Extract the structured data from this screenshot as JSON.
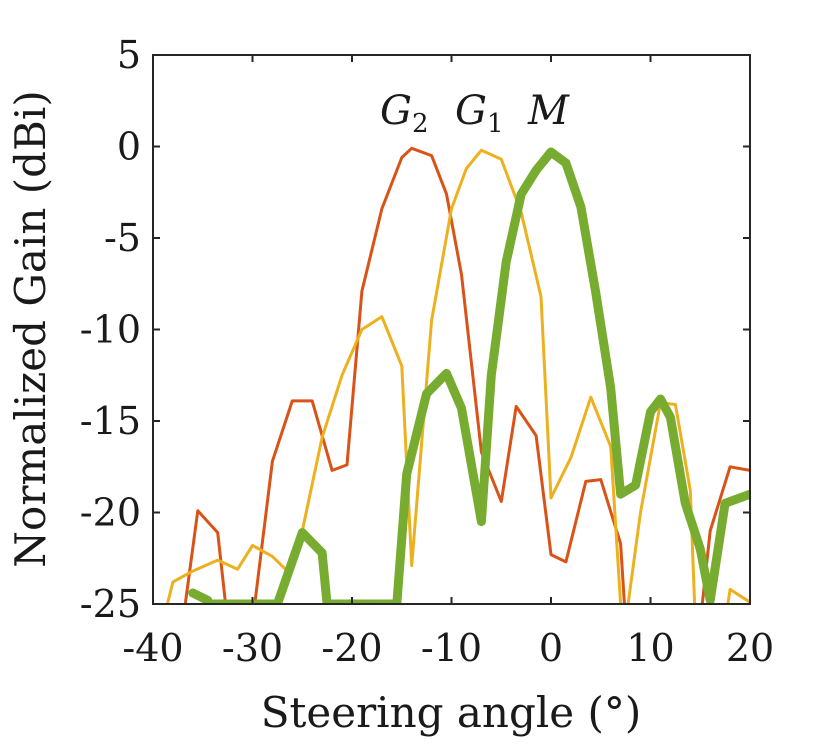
{
  "chart_data": {
    "type": "line",
    "xlabel": "Steering angle (°)",
    "ylabel": "Normalized Gain (dBi)",
    "xlim": [
      -40,
      20
    ],
    "ylim": [
      -25,
      5
    ],
    "xticks": [
      -40,
      -30,
      -20,
      -10,
      0,
      10,
      20
    ],
    "yticks": [
      5,
      0,
      -5,
      -10,
      -15,
      -20,
      -25
    ],
    "grid": false,
    "legend_labels": [
      {
        "base": "G",
        "sub": "2",
        "name": "G2"
      },
      {
        "base": "G",
        "sub": "1",
        "name": "G1"
      },
      {
        "base": "M",
        "sub": "",
        "name": "M"
      }
    ],
    "series": [
      {
        "name": "G2",
        "color": "#d95319",
        "width": 3,
        "points": [
          [
            -37,
            -26
          ],
          [
            -35.5,
            -19.9
          ],
          [
            -33.5,
            -21.1
          ],
          [
            -32.5,
            -26
          ],
          [
            -30,
            -26
          ],
          [
            -28,
            -17.2
          ],
          [
            -26,
            -13.9
          ],
          [
            -24,
            -13.9
          ],
          [
            -22,
            -17.7
          ],
          [
            -20.5,
            -17.4
          ],
          [
            -19,
            -7.9
          ],
          [
            -17,
            -3.4
          ],
          [
            -15,
            -0.6
          ],
          [
            -14,
            -0.1
          ],
          [
            -12,
            -0.5
          ],
          [
            -10.5,
            -2.6
          ],
          [
            -9,
            -7
          ],
          [
            -7,
            -16.7
          ],
          [
            -5,
            -19.4
          ],
          [
            -3.5,
            -14.2
          ],
          [
            -1.5,
            -15.8
          ],
          [
            0,
            -22.3
          ],
          [
            1.5,
            -22.7
          ],
          [
            3.5,
            -18.3
          ],
          [
            5,
            -18.2
          ],
          [
            7,
            -21.7
          ],
          [
            7.5,
            -26
          ],
          [
            15,
            -26
          ],
          [
            16,
            -21
          ],
          [
            18,
            -17.5
          ],
          [
            20,
            -17.7
          ]
        ]
      },
      {
        "name": "G1",
        "color": "#edb120",
        "width": 3,
        "points": [
          [
            -39,
            -26
          ],
          [
            -38,
            -23.8
          ],
          [
            -36,
            -23.2
          ],
          [
            -33.5,
            -22.6
          ],
          [
            -31.5,
            -23.1
          ],
          [
            -30,
            -21.8
          ],
          [
            -28,
            -22.4
          ],
          [
            -26.5,
            -23.2
          ],
          [
            -25,
            -21
          ],
          [
            -23,
            -15.9
          ],
          [
            -21,
            -12.5
          ],
          [
            -19,
            -10
          ],
          [
            -17,
            -9.3
          ],
          [
            -15,
            -12
          ],
          [
            -14,
            -22.9
          ],
          [
            -12,
            -9.5
          ],
          [
            -10,
            -3.4
          ],
          [
            -8.5,
            -1.2
          ],
          [
            -7,
            -0.2
          ],
          [
            -5,
            -0.7
          ],
          [
            -3,
            -3.6
          ],
          [
            -1,
            -8.2
          ],
          [
            0,
            -19.2
          ],
          [
            2,
            -17
          ],
          [
            4,
            -13.7
          ],
          [
            6,
            -16.4
          ],
          [
            7,
            -25
          ],
          [
            7.5,
            -26
          ],
          [
            9,
            -20
          ],
          [
            11,
            -14
          ],
          [
            12.5,
            -14.1
          ],
          [
            14,
            -18.8
          ],
          [
            14.5,
            -26
          ],
          [
            17.5,
            -26
          ],
          [
            18,
            -24.2
          ],
          [
            20,
            -24.9
          ]
        ]
      },
      {
        "name": "M",
        "color": "#77ac30",
        "width": 9,
        "points": [
          [
            -36,
            -24.4
          ],
          [
            -34.5,
            -24.8
          ],
          [
            -34.5,
            -25
          ],
          [
            -27.5,
            -25
          ],
          [
            -25,
            -21.1
          ],
          [
            -23,
            -22.2
          ],
          [
            -22.5,
            -25
          ],
          [
            -15.5,
            -25
          ],
          [
            -14.5,
            -17.9
          ],
          [
            -12.5,
            -13.5
          ],
          [
            -10.5,
            -12.4
          ],
          [
            -9,
            -14.3
          ],
          [
            -7,
            -20.5
          ],
          [
            -6,
            -12.5
          ],
          [
            -4.5,
            -6.3
          ],
          [
            -3,
            -2.6
          ],
          [
            -1.5,
            -1.3
          ],
          [
            0,
            -0.3
          ],
          [
            1.5,
            -0.9
          ],
          [
            3,
            -3.3
          ],
          [
            4.5,
            -8
          ],
          [
            6,
            -13.2
          ],
          [
            7,
            -19
          ],
          [
            8.5,
            -18.5
          ],
          [
            10,
            -14.5
          ],
          [
            11,
            -13.8
          ],
          [
            12,
            -14.8
          ],
          [
            13.5,
            -19.5
          ],
          [
            15,
            -22
          ],
          [
            16,
            -24.8
          ],
          [
            17.5,
            -19.5
          ],
          [
            20,
            -19
          ]
        ]
      }
    ]
  }
}
